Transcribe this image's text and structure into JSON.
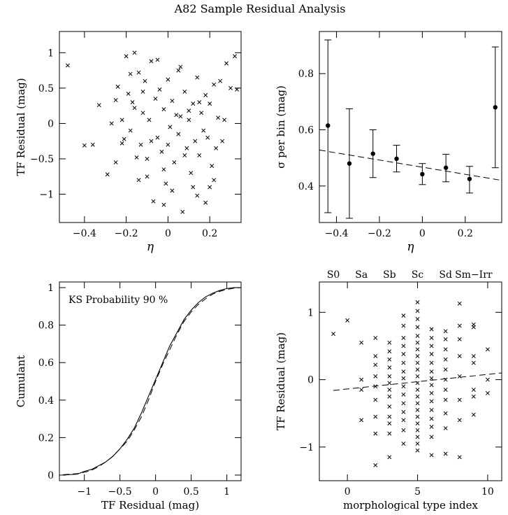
{
  "figure": {
    "title": "A82 Sample Residual Analysis"
  },
  "chart_data": [
    {
      "id": "eta_scatter",
      "type": "scatter",
      "title": "",
      "xlabel": "η",
      "ylabel": "TF Residual (mag)",
      "xlim": [
        -0.52,
        0.35
      ],
      "ylim": [
        -1.4,
        1.3
      ],
      "xticks": [
        -0.4,
        -0.2,
        0,
        0.2
      ],
      "xticklabels": [
        "−0.4",
        "−0.2",
        "0",
        "0.2"
      ],
      "yticks": [
        -1,
        -0.5,
        0,
        0.5,
        1
      ],
      "yticklabels": [
        "−1",
        "−0.5",
        "0",
        "0.5",
        "1"
      ],
      "marker": "x",
      "points": [
        [
          -0.48,
          0.82
        ],
        [
          -0.4,
          -0.31
        ],
        [
          -0.36,
          -0.3
        ],
        [
          -0.33,
          0.26
        ],
        [
          -0.29,
          -0.72
        ],
        [
          -0.27,
          0.0
        ],
        [
          -0.25,
          -0.55
        ],
        [
          -0.24,
          0.52
        ],
        [
          -0.22,
          0.05
        ],
        [
          -0.21,
          -0.22
        ],
        [
          -0.2,
          0.95
        ],
        [
          -0.19,
          0.42
        ],
        [
          -0.18,
          -0.1
        ],
        [
          -0.17,
          0.3
        ],
        [
          -0.16,
          1.0
        ],
        [
          -0.15,
          -0.48
        ],
        [
          -0.14,
          0.72
        ],
        [
          -0.13,
          -0.3
        ],
        [
          -0.12,
          0.15
        ],
        [
          -0.11,
          0.6
        ],
        [
          -0.1,
          -0.75
        ],
        [
          -0.09,
          0.05
        ],
        [
          -0.08,
          0.88
        ],
        [
          -0.07,
          -1.1
        ],
        [
          -0.06,
          0.35
        ],
        [
          -0.05,
          -0.2
        ],
        [
          -0.04,
          0.48
        ],
        [
          -0.03,
          -0.4
        ],
        [
          -0.02,
          0.2
        ],
        [
          -0.01,
          -0.85
        ],
        [
          0.0,
          0.62
        ],
        [
          0.01,
          -0.05
        ],
        [
          0.02,
          0.32
        ],
        [
          0.03,
          -0.55
        ],
        [
          0.04,
          0.12
        ],
        [
          0.05,
          -0.15
        ],
        [
          0.06,
          0.8
        ],
        [
          0.07,
          -1.25
        ],
        [
          0.08,
          0.45
        ],
        [
          0.09,
          -0.35
        ],
        [
          0.1,
          0.05
        ],
        [
          0.11,
          -0.7
        ],
        [
          0.12,
          0.28
        ],
        [
          0.13,
          -0.25
        ],
        [
          0.14,
          0.65
        ],
        [
          0.15,
          -0.45
        ],
        [
          0.16,
          0.15
        ],
        [
          0.17,
          -0.1
        ],
        [
          0.18,
          0.4
        ],
        [
          0.19,
          -0.2
        ],
        [
          0.2,
          0.28
        ],
        [
          0.21,
          -0.6
        ],
        [
          0.22,
          0.55
        ],
        [
          0.23,
          -0.35
        ],
        [
          0.24,
          0.08
        ],
        [
          0.25,
          0.6
        ],
        [
          0.26,
          -0.25
        ],
        [
          0.28,
          0.85
        ],
        [
          0.3,
          0.5
        ],
        [
          0.32,
          0.95
        ],
        [
          -0.18,
          0.7
        ],
        [
          -0.1,
          -0.5
        ],
        [
          0.02,
          -0.95
        ],
        [
          0.1,
          0.18
        ],
        [
          0.18,
          -1.12
        ],
        [
          -0.05,
          0.9
        ],
        [
          0.05,
          0.75
        ],
        [
          -0.14,
          -0.8
        ],
        [
          0.12,
          -0.9
        ],
        [
          0.22,
          -0.8
        ],
        [
          -0.22,
          -0.28
        ],
        [
          -0.12,
          0.45
        ],
        [
          -0.02,
          -0.65
        ],
        [
          0.08,
          -0.45
        ],
        [
          0.15,
          0.3
        ],
        [
          0.27,
          0.05
        ],
        [
          -0.08,
          -0.25
        ],
        [
          0.0,
          -0.3
        ],
        [
          0.06,
          0.1
        ],
        [
          -0.16,
          0.22
        ],
        [
          0.2,
          -0.9
        ],
        [
          -0.02,
          -1.15
        ],
        [
          0.14,
          -1.02
        ],
        [
          0.33,
          0.48
        ],
        [
          -0.25,
          0.33
        ]
      ]
    },
    {
      "id": "sigma_bins",
      "type": "scatter",
      "title": "",
      "xlabel": "η",
      "ylabel": "σ per bin (mag)",
      "xlim": [
        -0.48,
        0.37
      ],
      "ylim": [
        0.27,
        0.95
      ],
      "xticks": [
        -0.4,
        -0.2,
        0,
        0.2
      ],
      "xticklabels": [
        "−0.4",
        "−0.2",
        "0",
        "0.2"
      ],
      "yticks": [
        0.4,
        0.6,
        0.8
      ],
      "yticklabels": [
        "0.4",
        "0.6",
        "0.8"
      ],
      "points_with_error": [
        {
          "x": -0.44,
          "y": 0.615,
          "low": 0.305,
          "high": 0.92
        },
        {
          "x": -0.34,
          "y": 0.48,
          "low": 0.285,
          "high": 0.675
        },
        {
          "x": -0.23,
          "y": 0.515,
          "low": 0.43,
          "high": 0.6
        },
        {
          "x": -0.12,
          "y": 0.497,
          "low": 0.45,
          "high": 0.545
        },
        {
          "x": 0.0,
          "y": 0.442,
          "low": 0.405,
          "high": 0.48
        },
        {
          "x": 0.11,
          "y": 0.465,
          "low": 0.415,
          "high": 0.513
        },
        {
          "x": 0.22,
          "y": 0.425,
          "low": 0.375,
          "high": 0.47
        },
        {
          "x": 0.34,
          "y": 0.68,
          "low": 0.465,
          "high": 0.895
        }
      ],
      "fit_line": {
        "style": "dashed",
        "x": [
          -0.48,
          0.37
        ],
        "y": [
          0.528,
          0.42
        ]
      }
    },
    {
      "id": "cumulant",
      "type": "line",
      "title": "",
      "xlabel": "TF Residual (mag)",
      "ylabel": "Cumulant",
      "annotation": "KS Probability 90 %",
      "xlim": [
        -1.35,
        1.2
      ],
      "ylim": [
        -0.03,
        1.03
      ],
      "xticks": [
        -1,
        -0.5,
        0,
        0.5,
        1
      ],
      "xticklabels": [
        "−1",
        "−0.5",
        "0",
        "0.5",
        "1"
      ],
      "yticks": [
        0,
        0.2,
        0.4,
        0.6,
        0.8,
        1
      ],
      "yticklabels": [
        "0",
        "0.2",
        "0.4",
        "0.6",
        "0.8",
        "1"
      ],
      "series": [
        {
          "style": "solid",
          "x": [
            -1.3,
            -1.1,
            -1.0,
            -0.9,
            -0.8,
            -0.7,
            -0.6,
            -0.5,
            -0.4,
            -0.3,
            -0.2,
            -0.1,
            0.0,
            0.1,
            0.2,
            0.3,
            0.4,
            0.5,
            0.6,
            0.7,
            0.8,
            0.9,
            1.0,
            1.1,
            1.2
          ],
          "y": [
            0.0,
            0.005,
            0.02,
            0.03,
            0.05,
            0.07,
            0.1,
            0.14,
            0.19,
            0.25,
            0.33,
            0.42,
            0.51,
            0.6,
            0.69,
            0.76,
            0.83,
            0.88,
            0.92,
            0.95,
            0.97,
            0.985,
            0.995,
            1.0,
            1.0
          ]
        },
        {
          "style": "dashed",
          "x": [
            -1.3,
            -1.1,
            -1.0,
            -0.9,
            -0.8,
            -0.7,
            -0.6,
            -0.5,
            -0.4,
            -0.3,
            -0.2,
            -0.1,
            0.0,
            0.1,
            0.2,
            0.3,
            0.4,
            0.5,
            0.6,
            0.7,
            0.8,
            0.9,
            1.0,
            1.1,
            1.2
          ],
          "y": [
            0.002,
            0.008,
            0.015,
            0.025,
            0.045,
            0.07,
            0.1,
            0.14,
            0.18,
            0.24,
            0.31,
            0.4,
            0.5,
            0.59,
            0.67,
            0.75,
            0.82,
            0.87,
            0.91,
            0.94,
            0.965,
            0.98,
            0.99,
            0.997,
            1.0
          ]
        }
      ]
    },
    {
      "id": "morph_type",
      "type": "scatter",
      "title": "",
      "xlabel": "morphological type index",
      "ylabel": "TF Residual (mag)",
      "xlim": [
        -2,
        11
      ],
      "ylim": [
        -1.5,
        1.45
      ],
      "xticks": [
        0,
        5,
        10
      ],
      "xticklabels": [
        "0",
        "5",
        "10"
      ],
      "yticks": [
        -1,
        0,
        1
      ],
      "yticklabels": [
        "−1",
        "0",
        "1"
      ],
      "top_labels": [
        {
          "x": -1,
          "text": "S0"
        },
        {
          "x": 1,
          "text": "Sa"
        },
        {
          "x": 3,
          "text": "Sb"
        },
        {
          "x": 5,
          "text": "Sc"
        },
        {
          "x": 7,
          "text": "Sd"
        },
        {
          "x": 9,
          "text": "Sm−Irr"
        }
      ],
      "marker": "x",
      "points": [
        [
          -1,
          0.68
        ],
        [
          0,
          0.88
        ],
        [
          1,
          0.55
        ],
        [
          1,
          0.0
        ],
        [
          1,
          -0.15
        ],
        [
          1,
          -0.6
        ],
        [
          2,
          0.62
        ],
        [
          2,
          0.35
        ],
        [
          2,
          0.22
        ],
        [
          2,
          0.05
        ],
        [
          2,
          -0.1
        ],
        [
          2,
          -0.3
        ],
        [
          2,
          -0.55
        ],
        [
          2,
          -0.8
        ],
        [
          2,
          -1.27
        ],
        [
          3,
          0.55
        ],
        [
          3,
          0.42
        ],
        [
          3,
          0.3
        ],
        [
          3,
          0.18
        ],
        [
          3,
          0.05
        ],
        [
          3,
          -0.05
        ],
        [
          3,
          -0.15
        ],
        [
          3,
          -0.25
        ],
        [
          3,
          -0.4
        ],
        [
          3,
          -0.55
        ],
        [
          3,
          -0.65
        ],
        [
          3,
          -0.8
        ],
        [
          3,
          -1.15
        ],
        [
          4,
          0.95
        ],
        [
          4,
          0.8
        ],
        [
          4,
          0.62
        ],
        [
          4,
          0.5
        ],
        [
          4,
          0.38
        ],
        [
          4,
          0.25
        ],
        [
          4,
          0.12
        ],
        [
          4,
          0.02
        ],
        [
          4,
          -0.1
        ],
        [
          4,
          -0.22
        ],
        [
          4,
          -0.35
        ],
        [
          4,
          -0.48
        ],
        [
          4,
          -0.6
        ],
        [
          4,
          -0.75
        ],
        [
          4,
          -0.95
        ],
        [
          5,
          1.15
        ],
        [
          5,
          1.02
        ],
        [
          5,
          0.9
        ],
        [
          5,
          0.78
        ],
        [
          5,
          0.65
        ],
        [
          5,
          0.55
        ],
        [
          5,
          0.45
        ],
        [
          5,
          0.35
        ],
        [
          5,
          0.25
        ],
        [
          5,
          0.15
        ],
        [
          5,
          0.05
        ],
        [
          5,
          -0.05
        ],
        [
          5,
          -0.15
        ],
        [
          5,
          -0.25
        ],
        [
          5,
          -0.35
        ],
        [
          5,
          -0.45
        ],
        [
          5,
          -0.55
        ],
        [
          5,
          -0.65
        ],
        [
          5,
          -0.75
        ],
        [
          5,
          -0.85
        ],
        [
          5,
          -0.95
        ],
        [
          5,
          -1.05
        ],
        [
          6,
          0.75
        ],
        [
          6,
          0.62
        ],
        [
          6,
          0.5
        ],
        [
          6,
          0.38
        ],
        [
          6,
          0.25
        ],
        [
          6,
          0.12
        ],
        [
          6,
          0.02
        ],
        [
          6,
          -0.08
        ],
        [
          6,
          -0.2
        ],
        [
          6,
          -0.32
        ],
        [
          6,
          -0.45
        ],
        [
          6,
          -0.58
        ],
        [
          6,
          -0.7
        ],
        [
          6,
          -0.85
        ],
        [
          6,
          -1.12
        ],
        [
          7,
          0.72
        ],
        [
          7,
          0.6
        ],
        [
          7,
          0.45
        ],
        [
          7,
          0.3
        ],
        [
          7,
          0.15
        ],
        [
          7,
          0.0
        ],
        [
          7,
          -0.15
        ],
        [
          7,
          -0.3
        ],
        [
          7,
          -0.5
        ],
        [
          7,
          -0.72
        ],
        [
          7,
          -1.1
        ],
        [
          8,
          1.13
        ],
        [
          8,
          0.8
        ],
        [
          8,
          0.6
        ],
        [
          8,
          0.35
        ],
        [
          8,
          0.05
        ],
        [
          8,
          -0.3
        ],
        [
          8,
          -0.6
        ],
        [
          8,
          -1.15
        ],
        [
          9,
          0.82
        ],
        [
          9,
          0.78
        ],
        [
          9,
          0.35
        ],
        [
          9,
          0.25
        ],
        [
          9,
          -0.15
        ],
        [
          9,
          -0.25
        ],
        [
          9,
          -0.52
        ],
        [
          10,
          0.45
        ],
        [
          10,
          0.0
        ],
        [
          10,
          -0.2
        ]
      ],
      "fit_line": {
        "style": "dashed",
        "x": [
          -1,
          11
        ],
        "y": [
          -0.16,
          0.1
        ]
      }
    }
  ]
}
